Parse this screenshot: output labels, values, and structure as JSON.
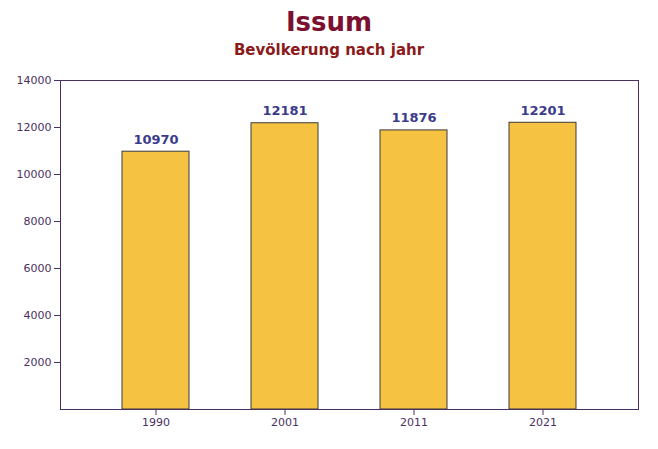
{
  "chart_data": {
    "type": "bar",
    "title": "Issum",
    "subtitle": "Bevölkerung nach jahr",
    "categories": [
      "1990",
      "2001",
      "2011",
      "2021"
    ],
    "values": [
      10970,
      12181,
      11876,
      12201
    ],
    "color": "#F5C242",
    "ylim": [
      0,
      14000
    ],
    "yticks": [
      2000,
      4000,
      6000,
      8000,
      10000,
      12000,
      14000
    ],
    "data_labels": true,
    "grid": false
  }
}
